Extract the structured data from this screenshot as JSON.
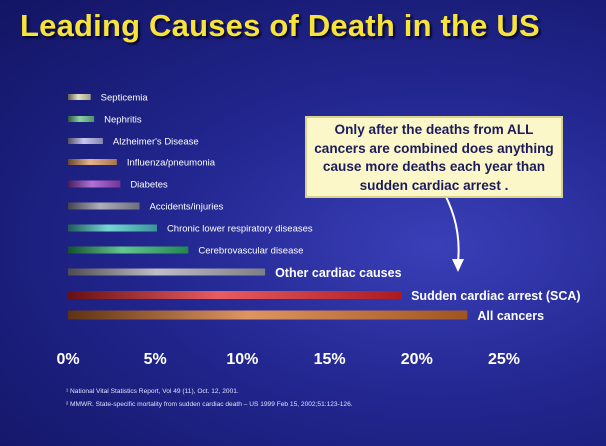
{
  "title": "Leading Causes of Death in the US",
  "callout": {
    "text": "Only after the deaths from ALL cancers are combined does anything cause more deaths each year than sudden cardiac arrest ."
  },
  "footnotes": [
    "¹ National Vital Statistics Report,   Vol 49 (11), Oct. 12, 2001.",
    "² MMWR. State-specific mortality from sudden  cardiac death – US 1999 Feb 15, 2002;51:123-126."
  ],
  "chart_data": {
    "type": "bar",
    "orientation": "horizontal",
    "unit": "percent of deaths",
    "xlim": [
      0,
      25
    ],
    "xticks": [
      "0%",
      "5%",
      "10%",
      "15%",
      "20%",
      "25%"
    ],
    "grid": false,
    "legend": "none",
    "categories": [
      "Septicemia",
      "Nephritis",
      "Alzheimer's Disease",
      "Influenza/pneumonia",
      "Diabetes",
      "Accidents/injuries",
      "Chronic lower respiratory diseases",
      "Cerebrovascular disease",
      "Other cardiac causes",
      "Sudden cardiac arrest (SCA)",
      "All cancers"
    ],
    "values": [
      1.3,
      1.5,
      2.0,
      2.8,
      3.0,
      4.1,
      5.1,
      6.9,
      11.3,
      19.1,
      22.9
    ],
    "colors": [
      "#d6d6b4",
      "#68c08a",
      "#b3b3ea",
      "#e09a68",
      "#9b42c8",
      "#9494a4",
      "#49c7c7",
      "#2fb36a",
      "#a8a8b4",
      "#e0242c",
      "#d4702c"
    ],
    "label_colors": [
      "#ffffff",
      "#ffffff",
      "#ffffff",
      "#ffffff",
      "#ffffff",
      "#ffffff",
      "#ffffff",
      "#ffffff",
      "#ffffff",
      "#ff3333",
      "#4f86ff"
    ]
  }
}
